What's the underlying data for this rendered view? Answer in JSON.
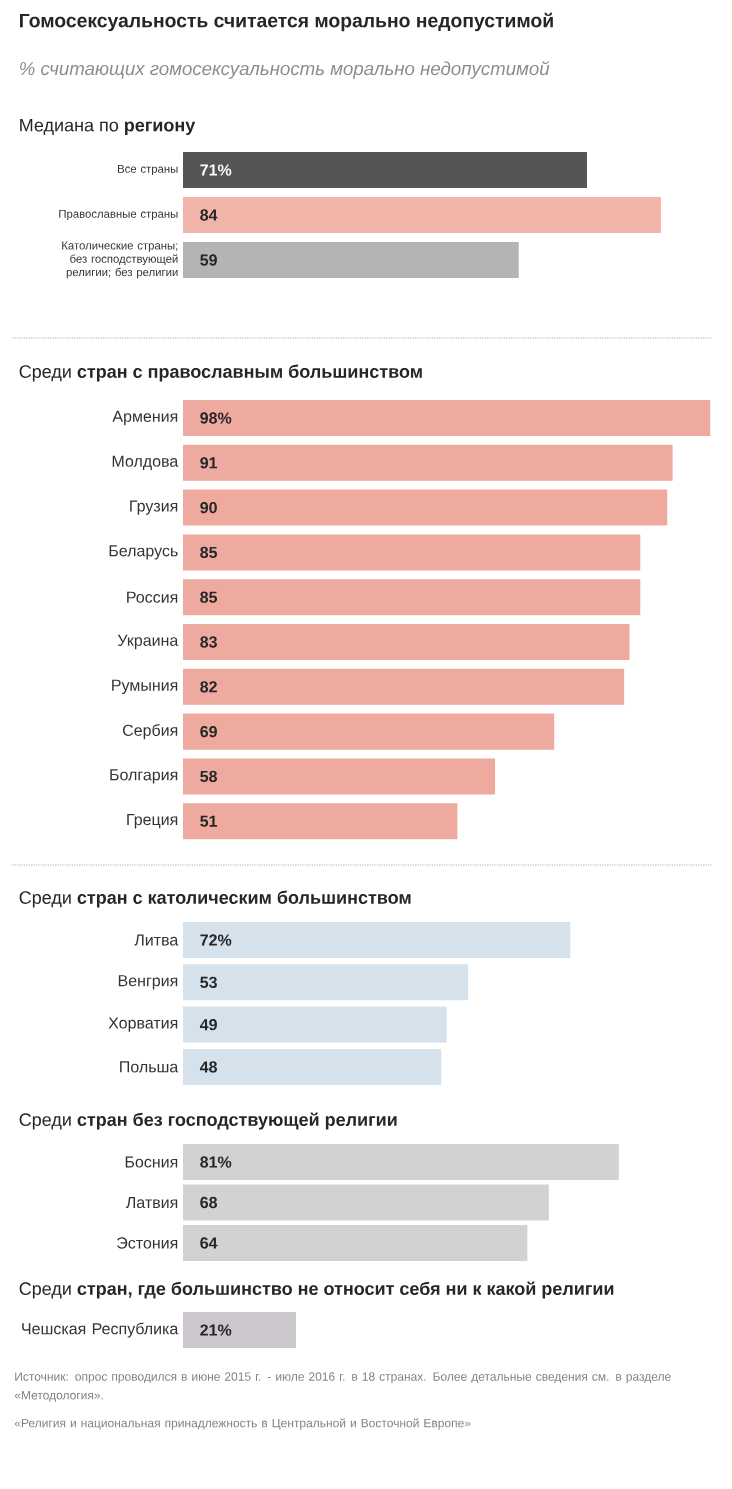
{
  "chart_data": [
    {
      "type": "bar",
      "orientation": "horizontal",
      "title": "Гомосексуальность считается морально недопустимой",
      "subtitle": "% считающих гомосексуальность морально недопустимой",
      "annotations": [
        "Медиана по **региону**"
      ],
      "categories": [
        "Все страны",
        "Православные страны",
        "Католические страны; без господствующей религии; без религии"
      ],
      "values": [
        71,
        84,
        59
      ],
      "value_labels": [
        "71%",
        "84",
        "59"
      ],
      "colors": [
        "#555555",
        "#f2b3a8",
        "#b4b4b4"
      ]
    },
    {
      "type": "bar",
      "orientation": "horizontal",
      "title": "Среди **стран с православным большинством**",
      "categories": [
        "Армения",
        "Молдова",
        "Грузия",
        "Беларусь",
        "Россия",
        "Украина",
        "Румыния",
        "Сербия",
        "Болгария",
        "Греция"
      ],
      "values": [
        98,
        91,
        90,
        85,
        85,
        83,
        82,
        69,
        58,
        51
      ],
      "value_labels": [
        "98%",
        "91",
        "90",
        "85",
        "85",
        "83",
        "82",
        "69",
        "58",
        "51"
      ],
      "color": "#efaaa0"
    },
    {
      "type": "bar",
      "orientation": "horizontal",
      "title": "Среди **стран с католическим большинством**",
      "categories": [
        "Литва",
        "Венгрия",
        "Хорватия",
        "Польша"
      ],
      "values": [
        72,
        53,
        49,
        48
      ],
      "value_labels": [
        "72%",
        "53",
        "49",
        "48"
      ],
      "color": "#d5e2ec"
    },
    {
      "type": "bar",
      "orientation": "horizontal",
      "title": "Среди **стран без господствующей религии**",
      "categories": [
        "Босния",
        "Латвия",
        "Эстония"
      ],
      "values": [
        81,
        68,
        64
      ],
      "value_labels": [
        "81%",
        "68",
        "64"
      ],
      "color": "#d2d2d4"
    },
    {
      "type": "bar",
      "orientation": "horizontal",
      "title": "Среди **стран, где большинство не относит себя ни к какой религии**",
      "categories": [
        "Чешская Республика"
      ],
      "values": [
        21
      ],
      "value_labels": [
        "21%"
      ],
      "color": "#cbc7cd",
      "annotations": [
        "Источник: опрос проводился в июне 2015 г. - июле 2016 г. в 18 странах. Более детальные сведения см. в разделе «Методология».",
        "«Религия и национальная принадлежность в Центральной и Восточной Европе»"
      ]
    }
  ]
}
